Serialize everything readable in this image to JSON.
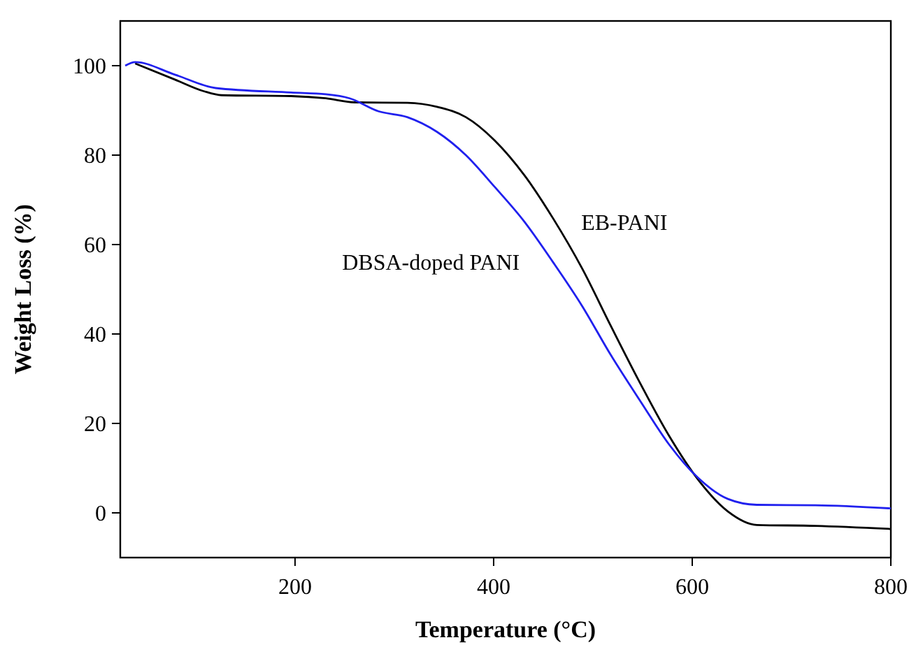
{
  "chart_data": {
    "type": "line",
    "xlabel": "Temperature (°C)",
    "ylabel": "Weight Loss (%)",
    "xlim": [
      24,
      800
    ],
    "ylim": [
      -10,
      110
    ],
    "xticks": [
      200,
      400,
      600,
      800
    ],
    "yticks": [
      0,
      20,
      40,
      60,
      80,
      100
    ],
    "grid": false,
    "marker": "none",
    "line_style": "solid",
    "series": [
      {
        "name": "EB-PANI",
        "color": "#000000",
        "x": [
          39,
          79,
          108,
          126,
          196,
          231,
          260,
          313,
          343,
          372,
          401,
          431,
          460,
          489,
          518,
          548,
          577,
          606,
          636,
          665,
          724,
          800
        ],
        "values": [
          100.5,
          96.9,
          94.3,
          93.4,
          93.2,
          92.7,
          91.8,
          91.7,
          90.8,
          88.5,
          83.3,
          75.5,
          65.8,
          54.7,
          41.8,
          28.8,
          17.1,
          7.4,
          0.3,
          -2.7,
          -2.9,
          -3.6
        ]
      },
      {
        "name": "DBSA-doped PANI",
        "color": "#2020ee",
        "x": [
          29,
          39,
          79,
          120,
          196,
          231,
          255,
          284,
          313,
          343,
          372,
          401,
          431,
          460,
          489,
          518,
          548,
          577,
          606,
          636,
          665,
          724,
          800
        ],
        "values": [
          100,
          100.8,
          98,
          95,
          94,
          93.6,
          92.7,
          89.8,
          88.5,
          85.2,
          80,
          72.9,
          65.1,
          56,
          46.3,
          35.3,
          24.9,
          15.2,
          7.8,
          3.1,
          1.8,
          1.7,
          1.0
        ]
      }
    ]
  }
}
